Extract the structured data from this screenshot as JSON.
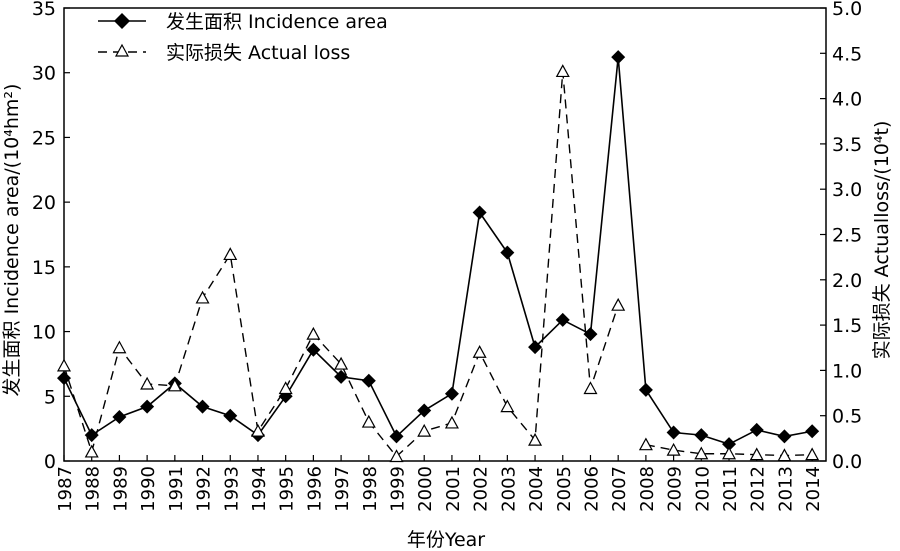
{
  "chart_data": {
    "type": "line",
    "xlabel": "年份Year",
    "ylabel_left": "发生面积 Incidence area/(10⁴hm²)",
    "ylabel_right": "实际损失 Actualloss/(10⁴t)",
    "x": [
      1987,
      1988,
      1989,
      1990,
      1991,
      1992,
      1993,
      1994,
      1995,
      1996,
      1997,
      1998,
      1999,
      2000,
      2001,
      2002,
      2003,
      2004,
      2005,
      2006,
      2007,
      2008,
      2009,
      2010,
      2011,
      2012,
      2013,
      2014
    ],
    "ylim_left": [
      0,
      35
    ],
    "ylim_right": [
      0,
      5
    ],
    "yticks_left": [
      "0",
      "5",
      "10",
      "15",
      "20",
      "25",
      "30",
      "35"
    ],
    "yticks_right": [
      "0.0",
      "0.5",
      "1.0",
      "1.5",
      "2.0",
      "2.5",
      "3.0",
      "3.5",
      "4.0",
      "4.5",
      "5.0"
    ],
    "legend_position": "top-left",
    "series": [
      {
        "name": "发生面积 Incidence area",
        "axis": "left",
        "marker": "filled-diamond",
        "line": "solid",
        "values": [
          6.4,
          2.0,
          3.4,
          4.2,
          6.0,
          4.2,
          3.5,
          2.0,
          5.0,
          8.6,
          6.5,
          6.2,
          1.9,
          3.9,
          5.2,
          19.2,
          16.1,
          8.8,
          10.9,
          9.8,
          31.2,
          5.5,
          2.2,
          2.0,
          1.3,
          2.4,
          1.9,
          2.3
        ]
      },
      {
        "name": "实际损失 Actual loss",
        "axis": "right",
        "marker": "open-triangle",
        "line": "dashed",
        "values": [
          1.05,
          0.1,
          1.25,
          0.85,
          0.83,
          1.8,
          2.28,
          0.33,
          0.8,
          1.4,
          1.07,
          0.43,
          0.05,
          0.33,
          0.42,
          1.2,
          0.6,
          0.23,
          4.3,
          0.8,
          1.72,
          0.18,
          0.12,
          0.08,
          0.08,
          0.07,
          0.06,
          0.07
        ],
        "gap_after_index": 20
      }
    ]
  }
}
